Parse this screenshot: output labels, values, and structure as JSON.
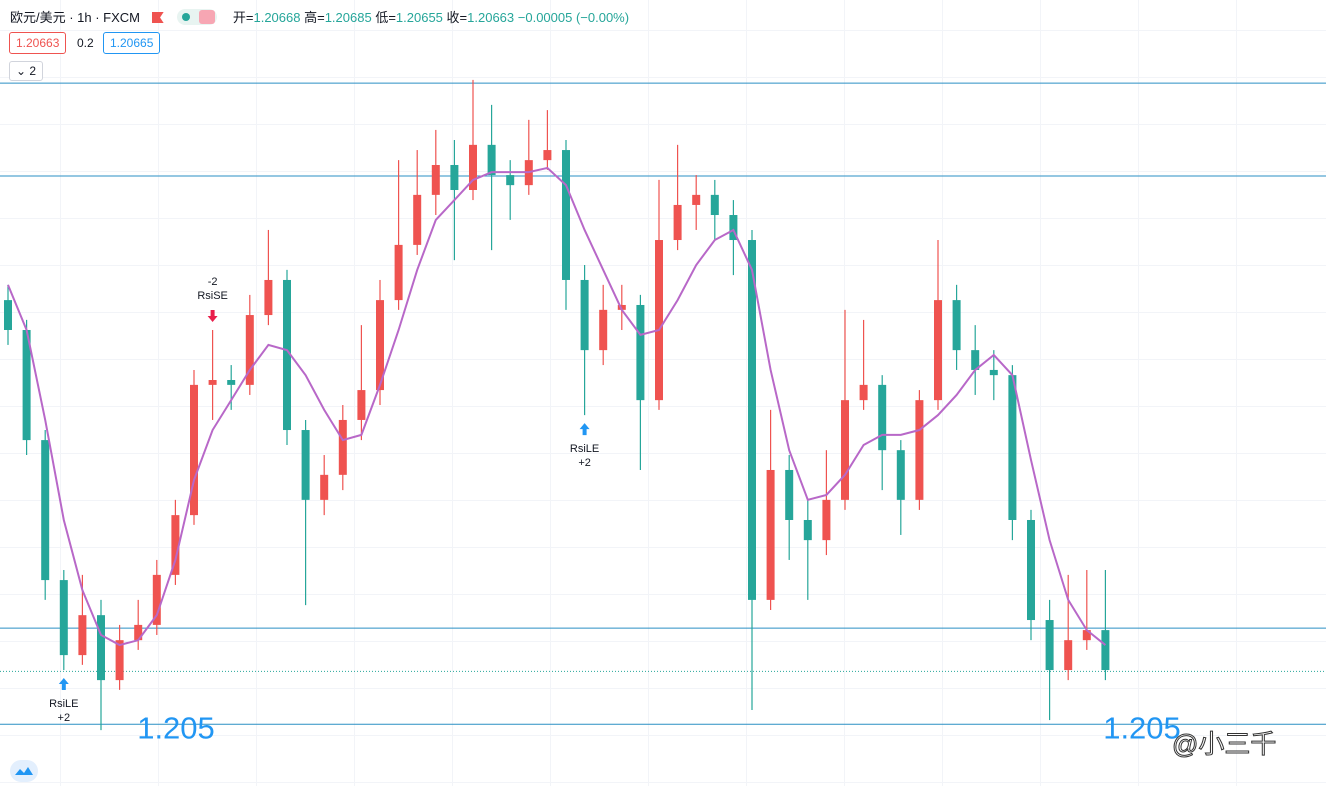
{
  "chart_data": {
    "type": "candlestick",
    "legend": {
      "symbol": "欧元/美元 · 1h · FXCM",
      "open_label": "开=",
      "open": "1.20668",
      "high_label": "高=",
      "high": "1.20685",
      "low_label": "低=",
      "low": "1.20655",
      "close_label": "收=",
      "close": "1.20663",
      "change": "−0.00005 (−0.00%)"
    },
    "sell_price": "1.20663",
    "spread": "0.2",
    "buy_price": "1.20665",
    "collapsed_count": "2",
    "ylim": [
      1.2031,
      1.2273
    ],
    "up_color": "#ef5350",
    "down_color": "#26a69a",
    "candles": {
      "open": [
        1.21806,
        1.21714,
        1.21375,
        1.20944,
        1.20713,
        1.20836,
        1.20636,
        1.20759,
        1.20806,
        1.2096,
        1.21144,
        1.21545,
        1.2156,
        1.21545,
        1.2176,
        1.21868,
        1.21406,
        1.21191,
        1.21268,
        1.21437,
        1.21529,
        1.21806,
        1.21976,
        1.2213,
        1.22222,
        1.22145,
        1.22284,
        1.22191,
        1.2216,
        1.22237,
        1.22268,
        1.21868,
        1.21652,
        1.21776,
        1.21791,
        1.21498,
        1.21991,
        1.22099,
        1.2213,
        1.22068,
        1.21991,
        1.20883,
        1.21283,
        1.21129,
        1.21067,
        1.21191,
        1.21498,
        1.21545,
        1.21344,
        1.21191,
        1.21498,
        1.21806,
        1.21652,
        1.21591,
        1.21575,
        1.21129,
        1.20821,
        1.20667,
        1.20759,
        1.2079
      ],
      "high": [
        1.21853,
        1.21745,
        1.21406,
        1.20975,
        1.2096,
        1.20883,
        1.20806,
        1.20883,
        1.21006,
        1.21191,
        1.21591,
        1.21714,
        1.21606,
        1.21822,
        1.22022,
        1.21899,
        1.21437,
        1.21329,
        1.21483,
        1.21729,
        1.21868,
        1.22237,
        1.22268,
        1.2233,
        1.22299,
        1.22484,
        1.22407,
        1.22237,
        1.22361,
        1.22391,
        1.22299,
        1.21914,
        1.21853,
        1.21853,
        1.21822,
        1.22176,
        1.22284,
        1.22191,
        1.22176,
        1.22114,
        1.22022,
        1.21468,
        1.21329,
        1.21191,
        1.21344,
        1.21776,
        1.21745,
        1.21575,
        1.21375,
        1.21529,
        1.21991,
        1.21853,
        1.21729,
        1.21652,
        1.21606,
        1.2116,
        1.20883,
        1.2096,
        1.20975,
        1.20975
      ],
      "low": [
        1.21668,
        1.21329,
        1.20883,
        1.20667,
        1.20683,
        1.20482,
        1.20606,
        1.20729,
        1.20775,
        1.20929,
        1.21114,
        1.21437,
        1.21468,
        1.21514,
        1.21729,
        1.2136,
        1.20867,
        1.21144,
        1.21221,
        1.21375,
        1.21483,
        1.21776,
        1.21945,
        1.22068,
        1.21929,
        1.22114,
        1.2196,
        1.22053,
        1.2213,
        1.22207,
        1.21776,
        1.21452,
        1.21606,
        1.21714,
        1.21283,
        1.21468,
        1.2196,
        1.22022,
        1.21991,
        1.21883,
        1.20544,
        1.20852,
        1.21006,
        1.20883,
        1.21021,
        1.2116,
        1.21468,
        1.21221,
        1.21083,
        1.2116,
        1.21468,
        1.21591,
        1.21514,
        1.21498,
        1.21067,
        1.20759,
        1.20513,
        1.20636,
        1.20729,
        1.20636
      ],
      "close": [
        1.21714,
        1.21375,
        1.20944,
        1.20713,
        1.20836,
        1.20636,
        1.20759,
        1.20806,
        1.2096,
        1.21144,
        1.21545,
        1.2156,
        1.21545,
        1.2176,
        1.21868,
        1.21406,
        1.21191,
        1.21268,
        1.21437,
        1.21529,
        1.21806,
        1.21976,
        1.2213,
        1.22222,
        1.22145,
        1.22284,
        1.22191,
        1.2216,
        1.22237,
        1.22268,
        1.21868,
        1.21652,
        1.21776,
        1.21791,
        1.21498,
        1.21991,
        1.22099,
        1.2213,
        1.22068,
        1.21991,
        1.20883,
        1.21283,
        1.21129,
        1.21067,
        1.21191,
        1.21498,
        1.21545,
        1.21344,
        1.21191,
        1.21498,
        1.21806,
        1.21652,
        1.21591,
        1.21575,
        1.21129,
        1.20821,
        1.20667,
        1.20759,
        1.2079,
        1.20667
      ]
    },
    "ma": {
      "color": "#b868c8",
      "values": [
        1.21853,
        1.21714,
        1.21437,
        1.21129,
        1.20913,
        1.20775,
        1.20744,
        1.20759,
        1.20836,
        1.21006,
        1.21252,
        1.21406,
        1.21498,
        1.21591,
        1.21668,
        1.21652,
        1.21575,
        1.21468,
        1.21375,
        1.21391,
        1.21545,
        1.21714,
        1.21899,
        1.22053,
        1.22114,
        1.22176,
        1.222,
        1.222,
        1.222,
        1.22213,
        1.2216,
        1.22022,
        1.21899,
        1.21776,
        1.21699,
        1.21714,
        1.21806,
        1.21914,
        1.21991,
        1.22022,
        1.21899,
        1.21591,
        1.21344,
        1.21191,
        1.21206,
        1.21268,
        1.2136,
        1.21391,
        1.21391,
        1.21406,
        1.21452,
        1.21514,
        1.21591,
        1.21637,
        1.21575,
        1.21314,
        1.21067,
        1.20883,
        1.2079,
        1.20744
      ]
    },
    "levels": {
      "color": "#2a8fc4",
      "values": [
        1.22474,
        1.22188,
        1.20796,
        1.205
      ]
    },
    "last_price": 1.20663,
    "annotations": [
      "1.205",
      "1.205"
    ],
    "signals": [
      {
        "index": 3,
        "side": "long",
        "name": "RsiLE",
        "qty": "+2"
      },
      {
        "index": 11,
        "side": "short",
        "name": "RsiSE",
        "qty": "-2"
      },
      {
        "index": 31,
        "side": "long",
        "name": "RsiLE",
        "qty": "+2"
      }
    ],
    "watermark": "@小三千"
  }
}
